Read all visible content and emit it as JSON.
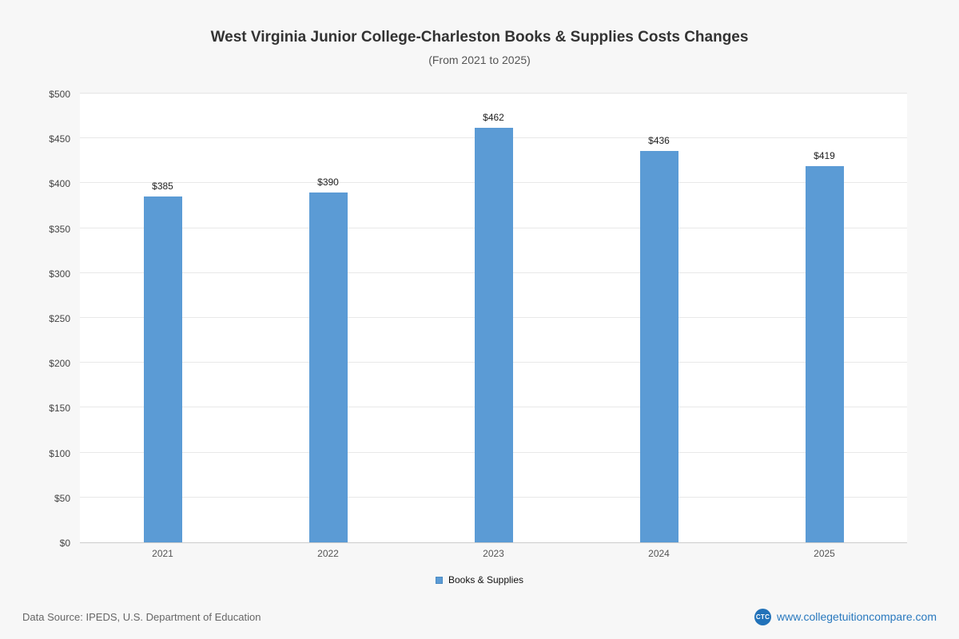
{
  "chart": {
    "title": "West Virginia Junior College-Charleston Books & Supplies Costs Changes",
    "subtitle": "(From 2021 to 2025)",
    "legend_label": "Books & Supplies"
  },
  "chart_data": {
    "type": "bar",
    "title": "West Virginia Junior College-Charleston Books & Supplies Costs Changes",
    "subtitle": "(From 2021 to 2025)",
    "categories": [
      "2021",
      "2022",
      "2023",
      "2024",
      "2025"
    ],
    "series": [
      {
        "name": "Books & Supplies",
        "values": [
          385,
          390,
          462,
          436,
          419
        ]
      }
    ],
    "xlabel": "",
    "ylabel": "",
    "ylim": [
      0,
      500
    ],
    "ytick_step": 50,
    "ytick_prefix": "$",
    "value_label_prefix": "$",
    "grid": true,
    "legend_position": "bottom",
    "bar_color": "#5b9bd5"
  },
  "footer": {
    "source": "Data Source: IPEDS, U.S. Department of Education",
    "logo_text": "CTC",
    "site": "www.collegetuitioncompare.com"
  }
}
